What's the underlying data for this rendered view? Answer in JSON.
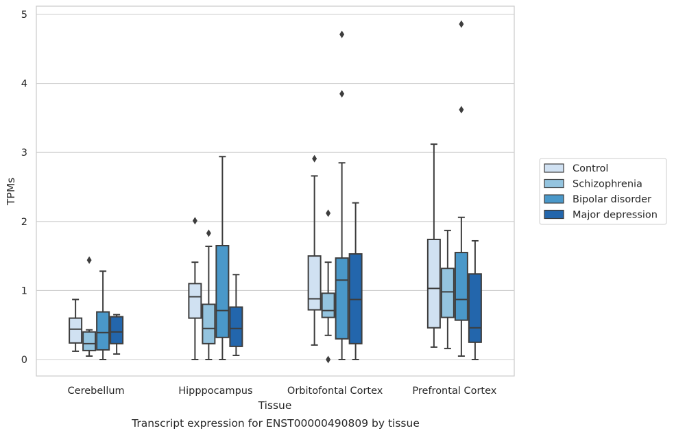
{
  "chart_data": {
    "type": "box",
    "xlabel": "Tissue",
    "ylabel": "TPMs",
    "caption": "Transcript expression for ENST00000490809 by tissue",
    "ylim": [
      -0.22,
      5.1
    ],
    "yticks": [
      "0",
      "1",
      "2",
      "3",
      "4",
      "5"
    ],
    "grid": "horizontal",
    "legend_position": "right",
    "categories": [
      "Cerebellum",
      "Hipppocampus",
      "Orbitofontal Cortex",
      "Prefrontal Cortex"
    ],
    "series": [
      {
        "name": "Control",
        "color": "#d0e1f2",
        "boxes": [
          {
            "whislo": 0.12,
            "q1": 0.24,
            "med": 0.44,
            "q3": 0.6,
            "whishi": 0.87,
            "fliers": []
          },
          {
            "whislo": 0.0,
            "q1": 0.6,
            "med": 0.91,
            "q3": 1.1,
            "whishi": 1.41,
            "fliers": [
              2.01
            ]
          },
          {
            "whislo": 0.21,
            "q1": 0.72,
            "med": 0.88,
            "q3": 1.5,
            "whishi": 2.66,
            "fliers": [
              2.91
            ]
          },
          {
            "whislo": 0.18,
            "q1": 0.46,
            "med": 1.03,
            "q3": 1.74,
            "whishi": 3.12,
            "fliers": []
          }
        ]
      },
      {
        "name": "Schizophrenia",
        "color": "#94c4df",
        "boxes": [
          {
            "whislo": 0.05,
            "q1": 0.13,
            "med": 0.23,
            "q3": 0.4,
            "whishi": 0.43,
            "fliers": [
              1.44
            ]
          },
          {
            "whislo": 0.0,
            "q1": 0.23,
            "med": 0.45,
            "q3": 0.8,
            "whishi": 1.64,
            "fliers": [
              1.83
            ]
          },
          {
            "whislo": 0.35,
            "q1": 0.61,
            "med": 0.71,
            "q3": 0.96,
            "whishi": 1.41,
            "fliers": [
              2.12,
              0.0
            ]
          },
          {
            "whislo": 0.16,
            "q1": 0.61,
            "med": 0.98,
            "q3": 1.32,
            "whishi": 1.87,
            "fliers": []
          }
        ]
      },
      {
        "name": "Bipolar disorder",
        "color": "#4a98c9",
        "boxes": [
          {
            "whislo": 0.0,
            "q1": 0.14,
            "med": 0.39,
            "q3": 0.69,
            "whishi": 1.28,
            "fliers": []
          },
          {
            "whislo": 0.0,
            "q1": 0.32,
            "med": 0.71,
            "q3": 1.65,
            "whishi": 2.94,
            "fliers": []
          },
          {
            "whislo": 0.0,
            "q1": 0.3,
            "med": 1.15,
            "q3": 1.47,
            "whishi": 2.85,
            "fliers": [
              4.71,
              3.85
            ]
          },
          {
            "whislo": 0.05,
            "q1": 0.57,
            "med": 0.87,
            "q3": 1.55,
            "whishi": 2.06,
            "fliers": [
              4.86,
              3.62
            ]
          }
        ]
      },
      {
        "name": "Major depression",
        "color": "#2366ac",
        "boxes": [
          {
            "whislo": 0.08,
            "q1": 0.23,
            "med": 0.4,
            "q3": 0.62,
            "whishi": 0.65,
            "fliers": []
          },
          {
            "whislo": 0.06,
            "q1": 0.19,
            "med": 0.45,
            "q3": 0.76,
            "whishi": 1.23,
            "fliers": []
          },
          {
            "whislo": 0.0,
            "q1": 0.23,
            "med": 0.87,
            "q3": 1.53,
            "whishi": 2.27,
            "fliers": []
          },
          {
            "whislo": 0.0,
            "q1": 0.25,
            "med": 0.46,
            "q3": 1.24,
            "whishi": 1.72,
            "fliers": []
          }
        ]
      }
    ]
  }
}
